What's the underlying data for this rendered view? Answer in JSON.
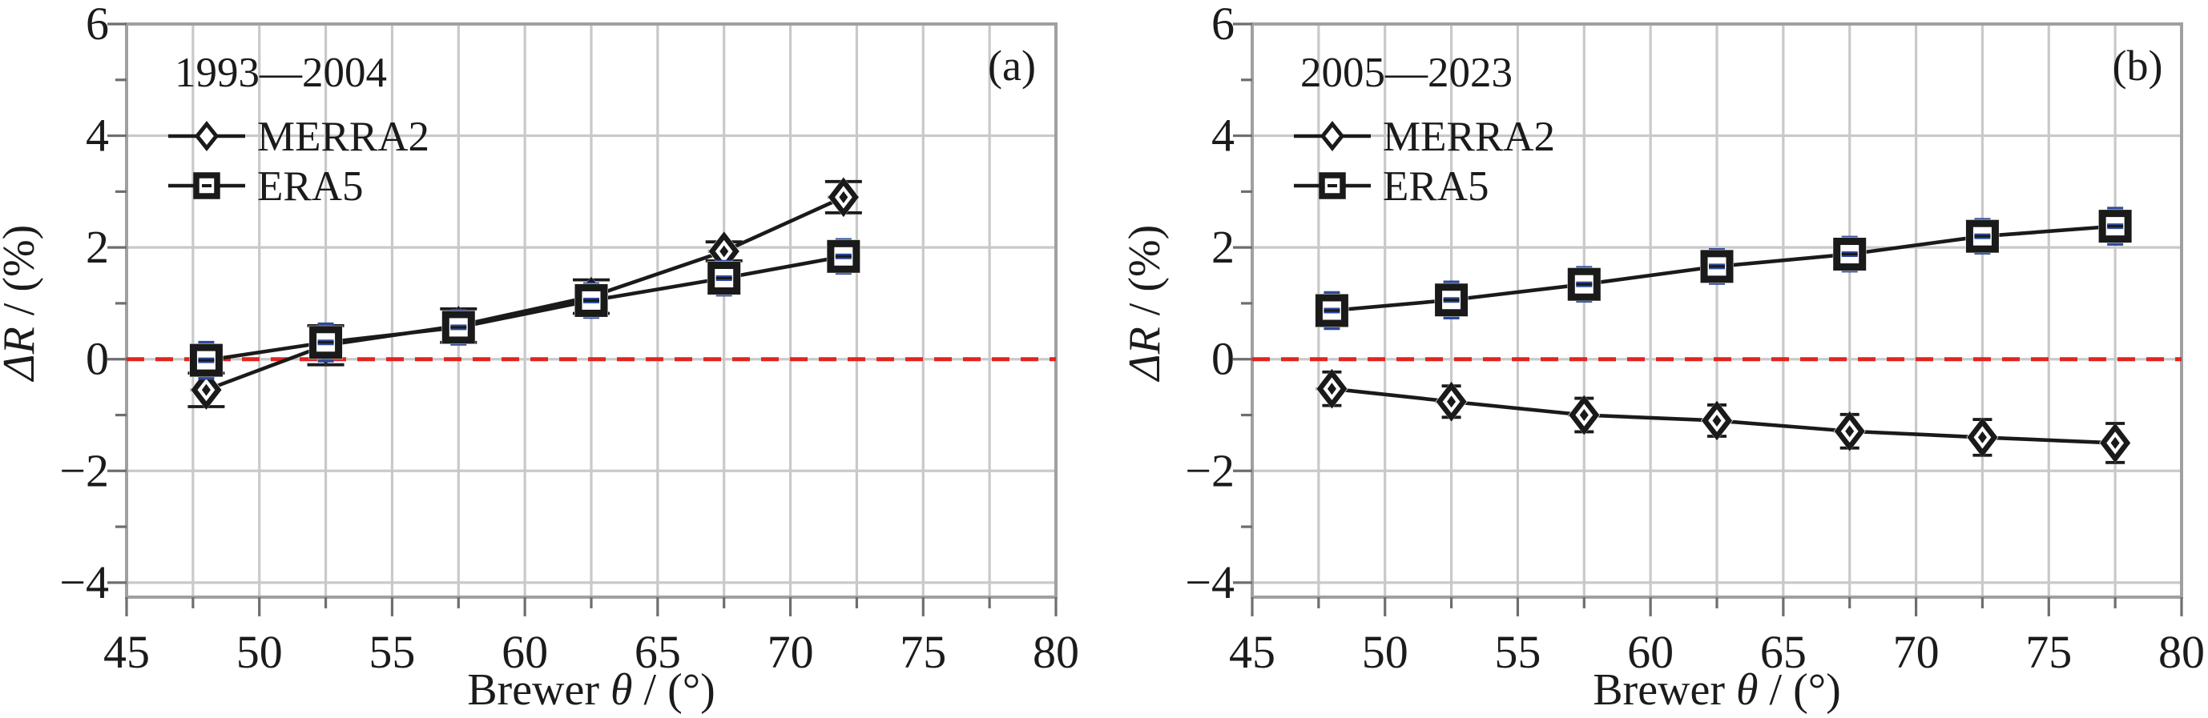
{
  "figure": {
    "type": "dual-panel-line-chart",
    "background": "#ffffff",
    "colors": {
      "series_line": "#1a1a1a",
      "merra2_error": "#1a1a1a",
      "era5_error": "#2e4a99",
      "zero_line": "#e22420",
      "grid": "#c9c9c9",
      "spine": "#a0a0a0",
      "text": "#1b1b1b"
    }
  },
  "chart_data": [
    {
      "type": "line",
      "panel_label": "(a)",
      "legend_title": "1993—2004",
      "legend_entries": [
        "MERRA2",
        "ERA5"
      ],
      "legend_position": "upper-left",
      "xlabel_parts": {
        "prefix": "Brewer ",
        "symbol": "θ",
        "suffix": " / (°)"
      },
      "ylabel_parts": {
        "symbol": "ΔR",
        "suffix": " / (%)"
      },
      "xlim": [
        45,
        80
      ],
      "ylim": [
        -4.26,
        6
      ],
      "xticks": [
        45,
        50,
        55,
        60,
        65,
        70,
        75,
        80
      ],
      "yticks": [
        -4,
        -2,
        0,
        2,
        4,
        6
      ],
      "x_minor_step": 2.5,
      "y_minor_step": 1,
      "grid": "on",
      "zero_line_y": 0,
      "x": [
        48,
        52.5,
        57.5,
        62.5,
        67.5,
        72
      ],
      "series": [
        {
          "name": "MERRA2",
          "marker": "diamond",
          "values": [
            -0.55,
            0.25,
            0.6,
            1.12,
            1.93,
            2.9
          ],
          "yerr": [
            0.3,
            0.35,
            0.3,
            0.3,
            0.17,
            0.28
          ],
          "xerr": 0.6
        },
        {
          "name": "ERA5",
          "marker": "square",
          "values": [
            -0.02,
            0.3,
            0.57,
            1.05,
            1.45,
            1.84
          ],
          "yerr": [
            0.32,
            0.33,
            0.3,
            0.3,
            0.3,
            0.3
          ],
          "xerr": 0.6
        }
      ]
    },
    {
      "type": "line",
      "panel_label": "(b)",
      "legend_title": "2005—2023",
      "legend_entries": [
        "MERRA2",
        "ERA5"
      ],
      "legend_position": "upper-left",
      "xlabel_parts": {
        "prefix": "Brewer ",
        "symbol": "θ",
        "suffix": " / (°)"
      },
      "ylabel_parts": {
        "symbol": "ΔR",
        "suffix": " / (%)"
      },
      "xlim": [
        45,
        80
      ],
      "ylim": [
        -4.26,
        6
      ],
      "xticks": [
        45,
        50,
        55,
        60,
        65,
        70,
        75,
        80
      ],
      "yticks": [
        -4,
        -2,
        0,
        2,
        4,
        6
      ],
      "x_minor_step": 2.5,
      "y_minor_step": 1,
      "grid": "on",
      "zero_line_y": 0,
      "x": [
        48,
        52.5,
        57.5,
        62.5,
        67.5,
        72.5,
        77.5
      ],
      "series": [
        {
          "name": "MERRA2",
          "marker": "diamond",
          "values": [
            -0.53,
            -0.76,
            -1.0,
            -1.1,
            -1.29,
            -1.4,
            -1.5
          ],
          "yerr": [
            0.3,
            0.28,
            0.3,
            0.28,
            0.3,
            0.32,
            0.35
          ],
          "xerr": 0.6
        },
        {
          "name": "ERA5",
          "marker": "square",
          "values": [
            0.87,
            1.06,
            1.34,
            1.66,
            1.88,
            2.2,
            2.38
          ],
          "yerr": [
            0.32,
            0.32,
            0.3,
            0.3,
            0.3,
            0.3,
            0.32
          ],
          "xerr": 0.6
        }
      ]
    }
  ]
}
